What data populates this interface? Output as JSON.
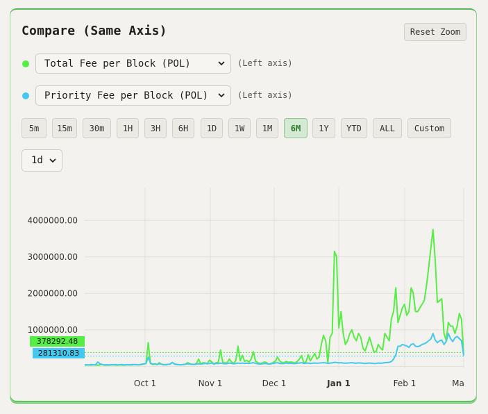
{
  "panel": {
    "title": "Compare (Same Axis)",
    "reset_label": "Reset Zoom"
  },
  "series_selectors": [
    {
      "label": "Total Fee per Block (POL)",
      "axis_note": "(Left axis)",
      "color": "#55ee44"
    },
    {
      "label": "Priority Fee per Block (POL)",
      "axis_note": "(Left axis)",
      "color": "#44c8f0"
    }
  ],
  "ranges": [
    "5m",
    "15m",
    "30m",
    "1H",
    "3H",
    "6H",
    "1D",
    "1W",
    "1M",
    "6M",
    "1Y",
    "YTD",
    "ALL",
    "Custom"
  ],
  "active_range": "6M",
  "interval": "1d",
  "chart_data": {
    "type": "line",
    "y_ticks": [
      "4000000.00",
      "3000000.00",
      "2000000.00",
      "1000000.00"
    ],
    "x_ticks": [
      "Oct 1",
      "Nov 1",
      "Dec 1",
      "Jan 1",
      "Feb 1",
      "Ma"
    ],
    "ylim": [
      -50000,
      4900000
    ],
    "grid": true,
    "crosshair_labels": [
      {
        "value": "378292.48",
        "color": "#55ee44"
      },
      {
        "value": "281310.83",
        "color": "#44c8f0"
      }
    ],
    "series": [
      {
        "color": "#55ee44",
        "values": [
          30000,
          35000,
          40000,
          30000,
          45000,
          35000,
          30000,
          40000,
          50000,
          30000,
          35000,
          30000,
          40000,
          45000,
          35000,
          30000,
          40000,
          35000,
          30000,
          40000,
          45000,
          35000,
          40000,
          50000,
          45000,
          40000,
          50000,
          60000,
          80000,
          650000,
          80000,
          50000,
          60000,
          45000,
          100000,
          60000,
          40000,
          50000,
          55000,
          60000,
          100000,
          70000,
          55000,
          45000,
          40000,
          50000,
          60000,
          100000,
          70000,
          60000,
          55000,
          80000,
          200000,
          60000,
          100000,
          90000,
          80000,
          170000,
          120000,
          70000,
          100000,
          110000,
          450000,
          120000,
          90000,
          100000,
          200000,
          120000,
          80000,
          160000,
          550000,
          150000,
          300000,
          140000,
          160000,
          120000,
          200000,
          400000,
          140000,
          100000,
          80000,
          90000,
          120000,
          100000,
          60000,
          80000,
          100000,
          140000,
          250000,
          150000,
          100000,
          100000,
          130000,
          110000,
          120000,
          110000,
          90000,
          130000,
          200000,
          300000,
          90000,
          120000,
          320000,
          150000,
          250000,
          350000,
          200000,
          250000,
          600000,
          850000,
          700000,
          100000,
          800000,
          900000,
          3150000,
          3000000,
          1050000,
          1500000,
          900000,
          600000,
          700000,
          900000,
          1000000,
          800000,
          700000,
          900000,
          800000,
          500000,
          420000,
          600000,
          800000,
          600000,
          400000,
          400000,
          600000,
          500000,
          450000,
          900000,
          800000,
          700000,
          1300000,
          1500000,
          2150000,
          1200000,
          1400000,
          1600000,
          1700000,
          1400000,
          1500000,
          2150000,
          2000000,
          1500000,
          1500000,
          1600000,
          1700000,
          1800000,
          2200000,
          2700000,
          3250000,
          3750000,
          2900000,
          1750000,
          1800000,
          1850000,
          900000,
          700000,
          1200000,
          1100000,
          1100000,
          900000,
          1100000,
          1450000,
          1300000,
          300000
        ]
      },
      {
        "color": "#44c8f0",
        "values": [
          40000,
          45000,
          40000,
          50000,
          40000,
          45000,
          120000,
          70000,
          50000,
          40000,
          45000,
          40000,
          45000,
          40000,
          50000,
          40000,
          45000,
          50000,
          40000,
          45000,
          40000,
          45000,
          50000,
          45000,
          40000,
          45000,
          60000,
          70000,
          80000,
          250000,
          90000,
          60000,
          70000,
          50000,
          70000,
          60000,
          50000,
          40000,
          55000,
          60000,
          110000,
          60000,
          50000,
          45000,
          40000,
          50000,
          55000,
          70000,
          60000,
          55000,
          50000,
          60000,
          70000,
          60000,
          70000,
          80000,
          70000,
          80000,
          90000,
          60000,
          80000,
          75000,
          90000,
          80000,
          70000,
          75000,
          90000,
          80000,
          70000,
          80000,
          90000,
          80000,
          90000,
          80000,
          85000,
          80000,
          90000,
          100000,
          80000,
          70000,
          65000,
          70000,
          80000,
          75000,
          60000,
          70000,
          80000,
          90000,
          100000,
          80000,
          75000,
          80000,
          90000,
          80000,
          85000,
          80000,
          75000,
          85000,
          90000,
          100000,
          80000,
          85000,
          90000,
          80000,
          85000,
          90000,
          85000,
          90000,
          95000,
          100000,
          95000,
          80000,
          90000,
          95000,
          110000,
          105000,
          95000,
          100000,
          90000,
          85000,
          90000,
          95000,
          100000,
          90000,
          85000,
          95000,
          90000,
          85000,
          80000,
          85000,
          90000,
          85000,
          80000,
          80000,
          90000,
          85000,
          90000,
          100000,
          105000,
          110000,
          130000,
          200000,
          320000,
          550000,
          550000,
          600000,
          580000,
          560000,
          520000,
          600000,
          620000,
          550000,
          540000,
          560000,
          600000,
          620000,
          650000,
          700000,
          750000,
          900000,
          720000,
          650000,
          700000,
          720000,
          600000,
          680000,
          900000,
          760000,
          680000,
          780000,
          820000,
          760000,
          700000,
          300000
        ]
      }
    ]
  }
}
